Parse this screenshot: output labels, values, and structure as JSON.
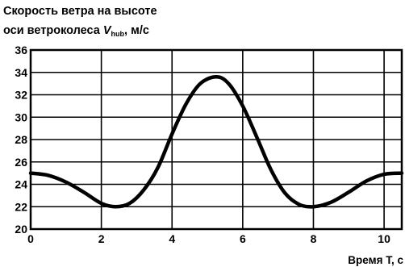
{
  "chart_data": {
    "type": "line",
    "title": {
      "line1": "Скорость ветра на высоте",
      "line2_prefix": "оси ветроколеса ",
      "line2_var": "V",
      "line2_sub": "hub",
      "line2_suffix": ", м/с"
    },
    "xlabel": "Время T, с",
    "ylabel": "",
    "xlim": [
      0,
      10.5
    ],
    "ylim": [
      20,
      36
    ],
    "xticks": [
      0,
      2,
      4,
      6,
      8,
      10
    ],
    "yticks": [
      20,
      22,
      24,
      26,
      28,
      30,
      32,
      34,
      36
    ],
    "grid": true,
    "series": [
      {
        "x": [
          0,
          0.5,
          1,
          1.5,
          2,
          2.4,
          2.8,
          3.2,
          3.6,
          4,
          4.4,
          4.8,
          5.25,
          5.6,
          6,
          6.4,
          6.8,
          7.2,
          7.6,
          8,
          8.5,
          9,
          9.5,
          10,
          10.5
        ],
        "y": [
          25,
          24.8,
          24.2,
          23.3,
          22.3,
          22.0,
          22.3,
          23.5,
          25.5,
          28.5,
          31.2,
          33.0,
          33.6,
          33.0,
          31.0,
          28.2,
          25.3,
          23.2,
          22.2,
          22.0,
          22.4,
          23.3,
          24.3,
          24.9,
          25
        ]
      }
    ]
  }
}
